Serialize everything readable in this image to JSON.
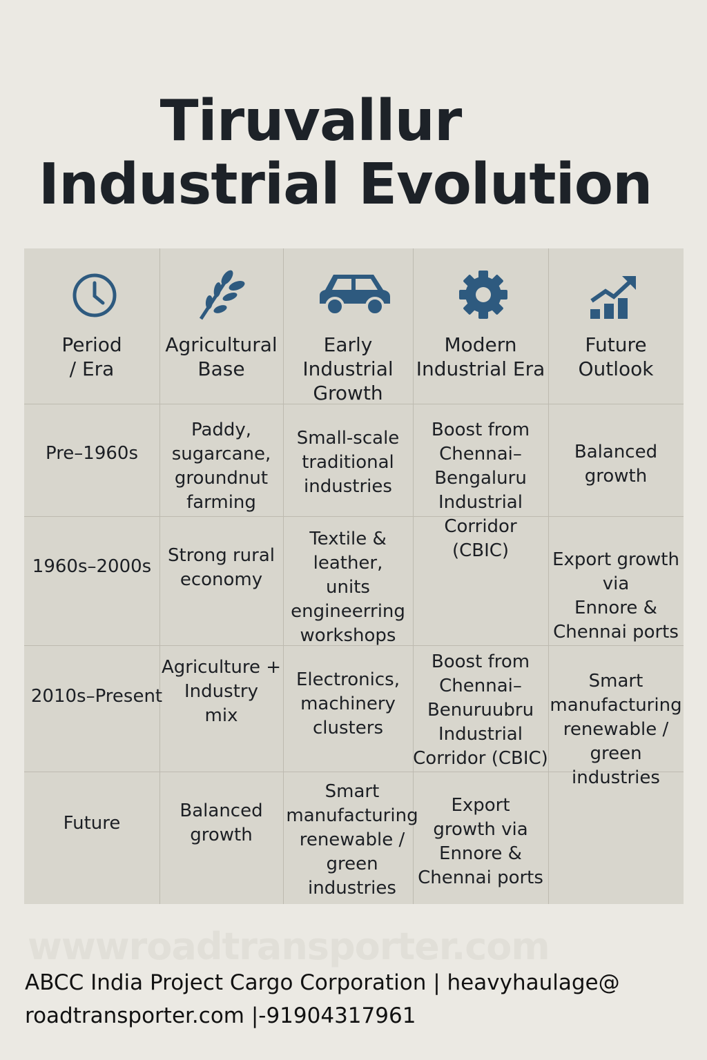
{
  "title_line1": "Tiruvallur",
  "title_line2": "Industrial Evolution",
  "colors": {
    "icon": "#2e5a7f",
    "background": "#ebe9e3",
    "table": "#d8d6cd"
  },
  "headers": [
    {
      "label": "Period\n/ Era",
      "icon": "clock-icon"
    },
    {
      "label": "Agricultural\nBase",
      "icon": "wheat-icon"
    },
    {
      "label": "Early\nIndustrial\nGrowth",
      "icon": "car-icon"
    },
    {
      "label": "Modern\nIndustrial Era",
      "icon": "gear-icon"
    },
    {
      "label": "Future\nOutlook",
      "icon": "growth-chart-icon"
    }
  ],
  "rows": [
    [
      "Pre–1960s",
      "Paddy,\nsugarcane,\ngroundnut\nfarming",
      "Small-scale\ntraditional\nindustries",
      "Boost from\nChennai–\nBengaluru\nIndustrial\nCorridor\n(CBIC)",
      "Balanced\ngrowth"
    ],
    [
      "1960s–2000s",
      "Strong rural\neconomy",
      "Textile &\nleather,\nunits\nengineerring\nworkshops",
      "",
      "Export growth\nvia\nEnnore &\nChennai ports"
    ],
    [
      "2010s–Present",
      "Agriculture +\nIndustry\nmix",
      "Electronics,\nmachinery\nclusters",
      "Boost from\nChennai–\nBenuruubru\nIndustrial\nCorridor (CBIC)",
      "Smart\nmanufacturing\nrenewable /\ngreen industries"
    ],
    [
      "Future",
      "Balanced\ngrowth",
      "Smart\nmanufacturing\nrenewable /\ngreen industries",
      "Export\ngrowth via\nEnnore &\nChennai ports",
      ""
    ]
  ],
  "watermark": "wwwroadtransporter.com",
  "footer_line1": "ABCC India Project Cargo Corporation | heavyhaulage@",
  "footer_line2": "roadtransporter.com |-91904317961"
}
